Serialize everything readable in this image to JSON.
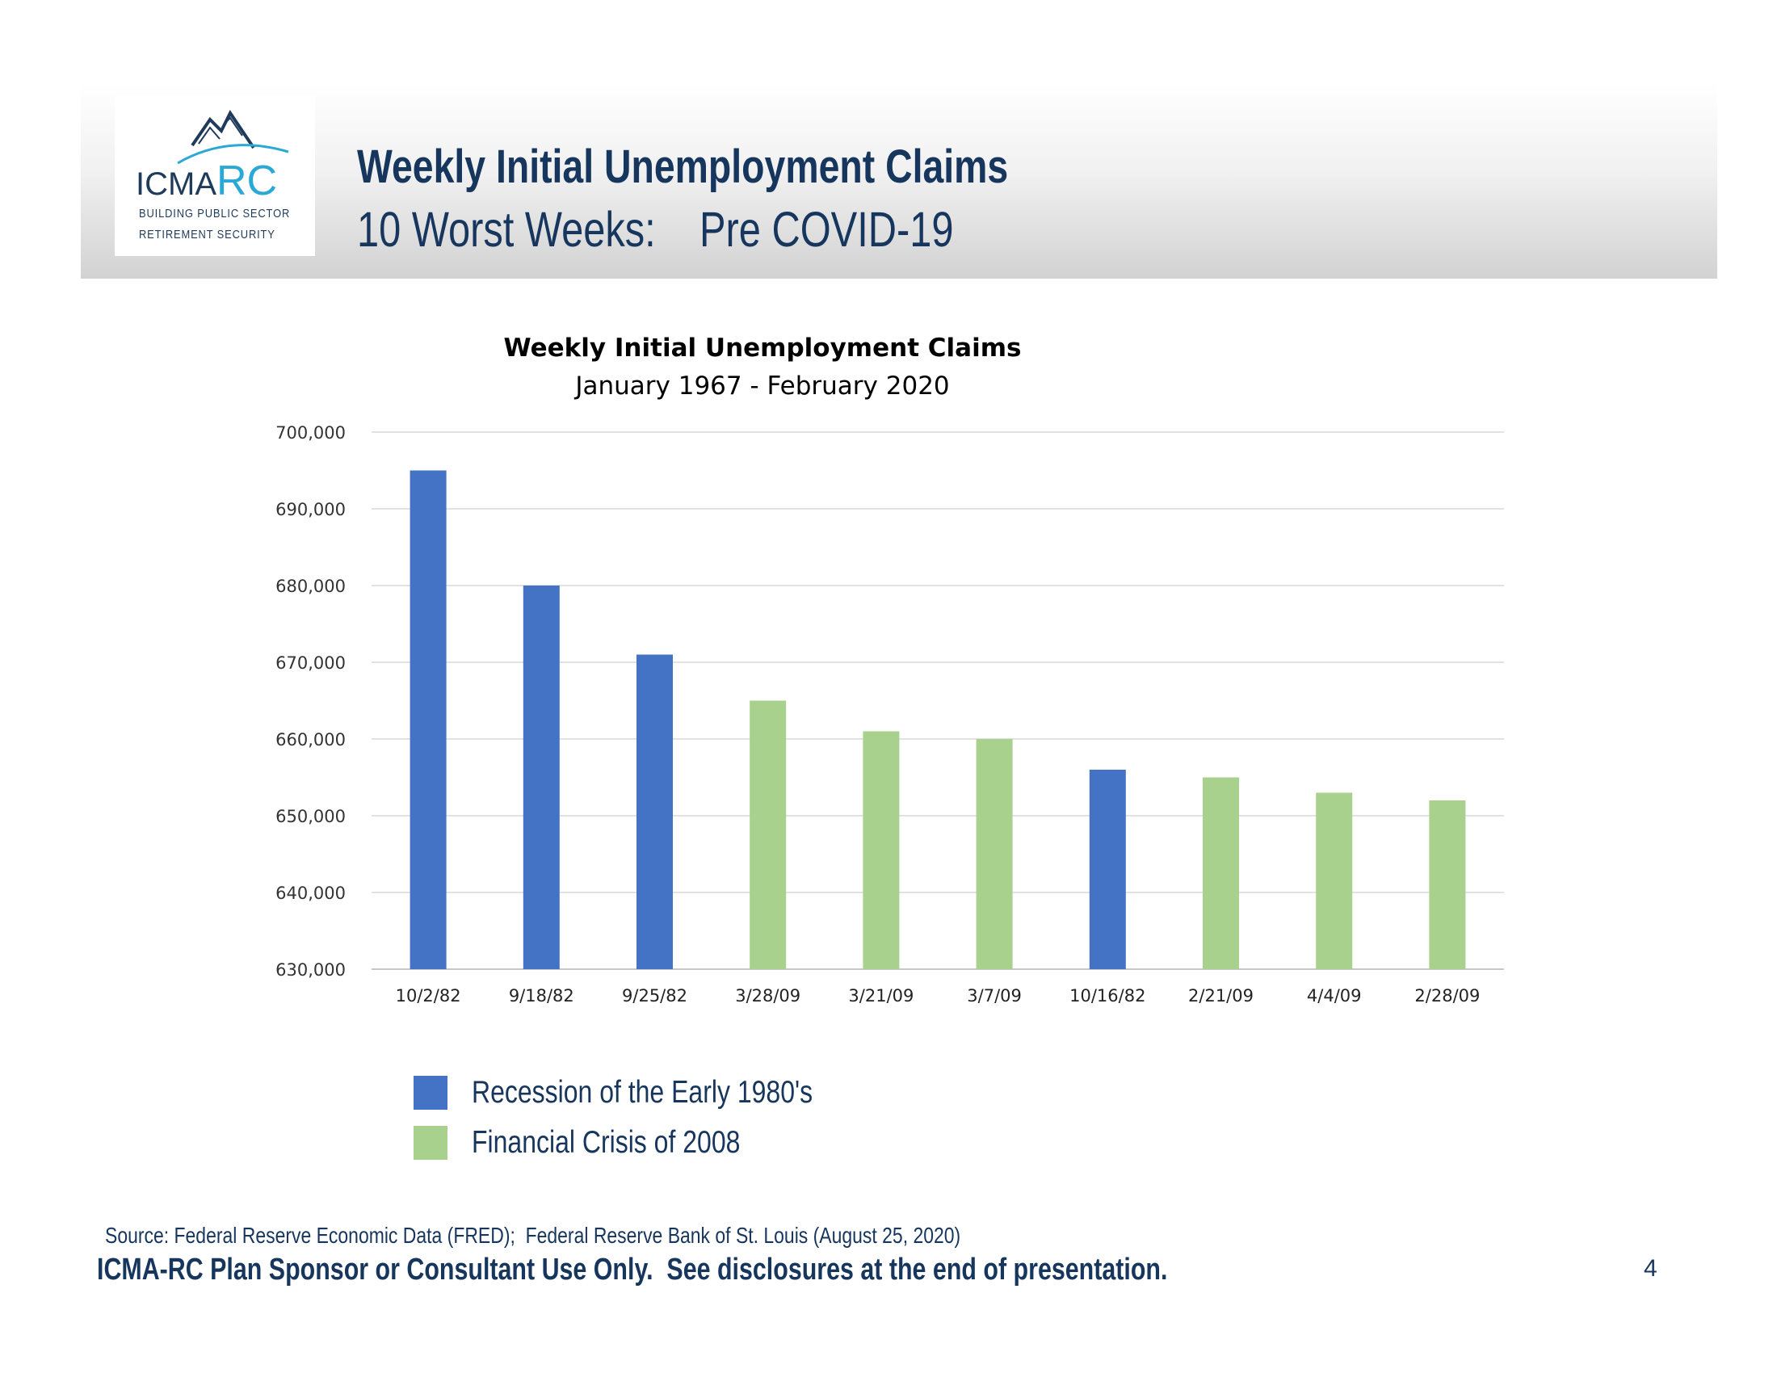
{
  "brand": {
    "logo_text_left": "ICMA",
    "logo_text_right": "RC",
    "tagline_line1": "BUILDING PUBLIC SECTOR",
    "tagline_line2": "RETIREMENT SECURITY",
    "logo_icon": "mountain-peaks-icon",
    "color_navy": "#1f3b5c",
    "color_teal": "#2aa8d6"
  },
  "slide": {
    "title": "Weekly Initial Unemployment Claims",
    "subtitle": "10 Worst Weeks:    Pre COVID-19",
    "source": "Source: Federal Reserve Economic Data (FRED);  Federal Reserve Bank of St. Louis (August 25, 2020)",
    "footer": "ICMA-RC Plan Sponsor or Consultant Use Only.  See disclosures at the end of presentation.",
    "page_number": "4"
  },
  "chart_data": {
    "type": "bar",
    "title": "Weekly Initial Unemployment Claims",
    "subtitle": "January 1967 - February 2020",
    "xlabel": "",
    "ylabel": "",
    "categories": [
      "10/2/82",
      "9/18/82",
      "9/25/82",
      "3/28/09",
      "3/21/09",
      "3/7/09",
      "10/16/82",
      "2/21/09",
      "4/4/09",
      "2/28/09"
    ],
    "values": [
      695000,
      680000,
      671000,
      665000,
      661000,
      660000,
      656000,
      655000,
      653000,
      652000
    ],
    "bar_groups": [
      0,
      0,
      0,
      1,
      1,
      1,
      0,
      1,
      1,
      1
    ],
    "series": [
      {
        "name": "Recession of the Early 1980's",
        "color": "#4472c4"
      },
      {
        "name": "Financial Crisis of 2008",
        "color": "#a9d18e"
      }
    ],
    "ylim": [
      630000,
      700000
    ],
    "yticks": [
      630000,
      640000,
      650000,
      660000,
      670000,
      680000,
      690000,
      700000
    ],
    "ytick_labels": [
      "630,000",
      "640,000",
      "650,000",
      "660,000",
      "670,000",
      "680,000",
      "690,000",
      "700,000"
    ],
    "grid": true,
    "legend_position": "bottom-left"
  }
}
